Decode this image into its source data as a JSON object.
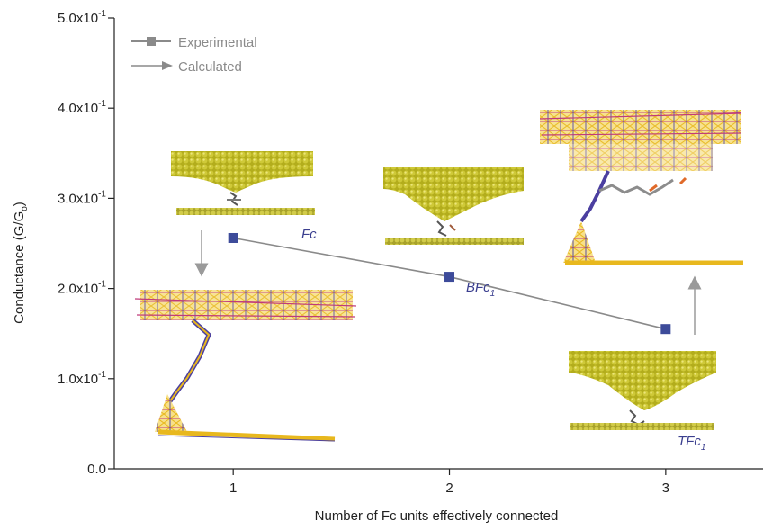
{
  "chart_data": {
    "type": "line",
    "xlabel": "Number of Fc units effectively connected",
    "ylabel": "Conductance (G/G",
    "ylabel_sub": "o",
    "ylabel_close": ")",
    "xlim": [
      0.45,
      3.45
    ],
    "ylim": [
      0,
      0.5
    ],
    "x_ticks": [
      1,
      2,
      3
    ],
    "x_tick_labels": [
      "1",
      "2",
      "3"
    ],
    "y_ticks": [
      {
        "value": 0.0,
        "label": "0.0",
        "exp": ""
      },
      {
        "value": 0.1,
        "label": "1.0x10",
        "exp": "-1"
      },
      {
        "value": 0.2,
        "label": "2.0x10",
        "exp": "-1"
      },
      {
        "value": 0.3,
        "label": "3.0x10",
        "exp": "-1"
      },
      {
        "value": 0.4,
        "label": "4.0x10",
        "exp": "-1"
      },
      {
        "value": 0.5,
        "label": "5.0x10",
        "exp": "-1"
      }
    ],
    "series": [
      {
        "name": "Experimental",
        "color": "#3d4b9a",
        "line_color": "#8a8a8a",
        "x": [
          1,
          2,
          3
        ],
        "y": [
          0.256,
          0.213,
          0.155
        ]
      }
    ],
    "legend": [
      {
        "label": "Experimental",
        "marker": "square"
      },
      {
        "label": "Calculated",
        "marker": "arrow"
      }
    ],
    "annotations": [
      {
        "label": "Fc",
        "sub": ""
      },
      {
        "label": "BFc",
        "sub": "1"
      },
      {
        "label": "TFc",
        "sub": "1"
      }
    ]
  }
}
